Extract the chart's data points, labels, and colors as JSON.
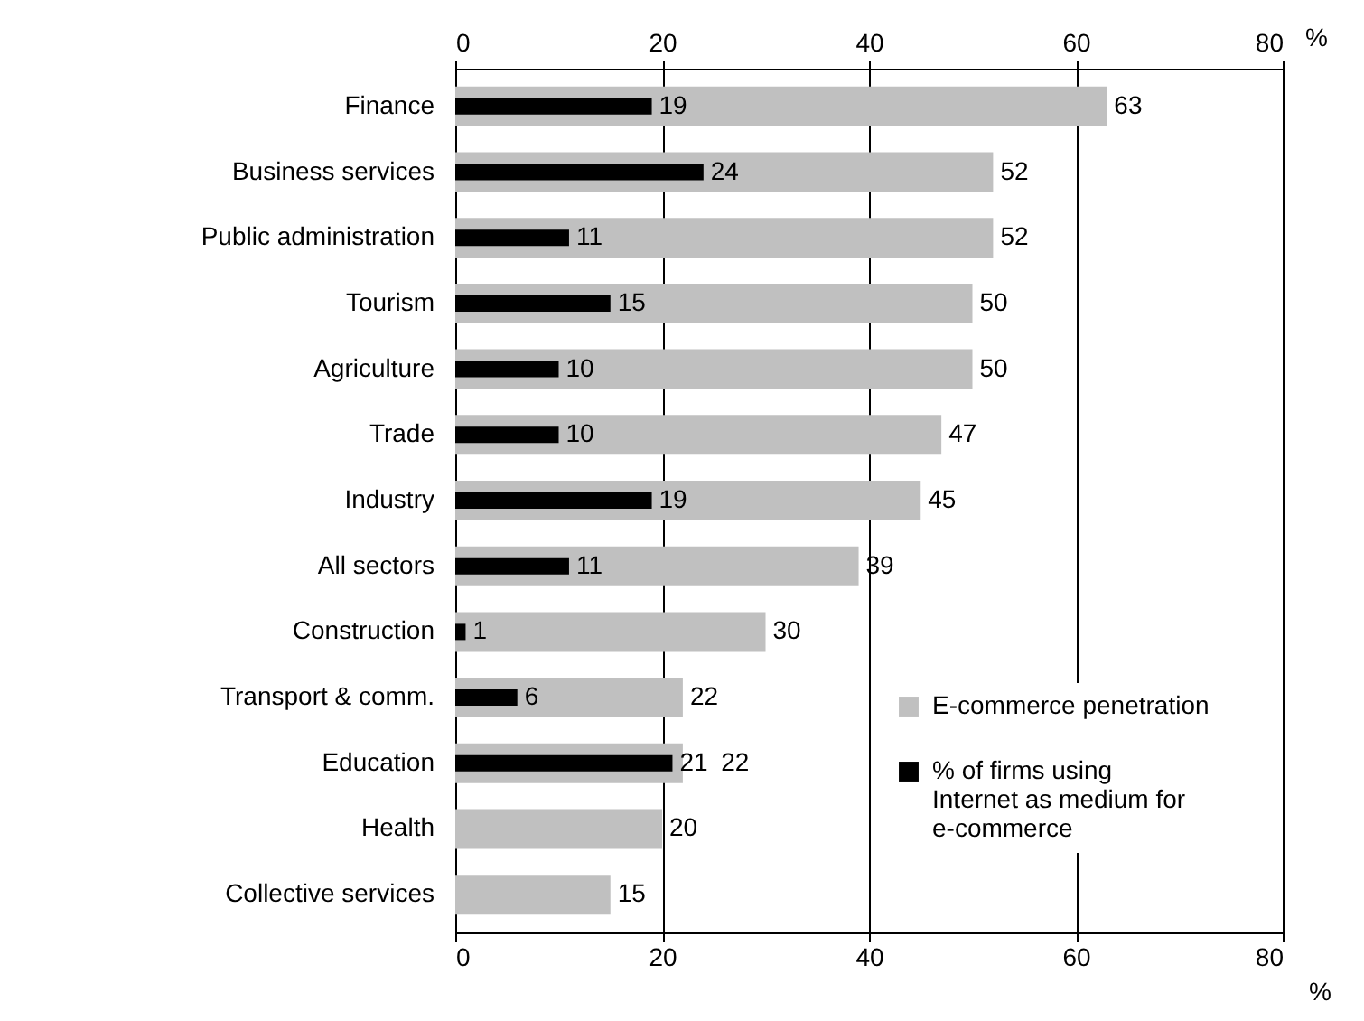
{
  "chart_data": {
    "type": "bar",
    "orientation": "horizontal",
    "categories": [
      "Finance",
      "Business services",
      "Public administration",
      "Tourism",
      "Agriculture",
      "Trade",
      "Industry",
      "All sectors",
      "Construction",
      "Transport & comm.",
      "Education",
      "Health",
      "Collective services"
    ],
    "series": [
      {
        "name": "E-commerce penetration",
        "color": "#c0c0c0",
        "values": [
          63,
          52,
          52,
          50,
          50,
          47,
          45,
          39,
          30,
          22,
          22,
          20,
          15
        ]
      },
      {
        "name": "% of firms using Internet as medium for e-commerce",
        "color": "#000000",
        "values": [
          19,
          24,
          11,
          15,
          10,
          10,
          19,
          11,
          1,
          6,
          21,
          null,
          null
        ]
      }
    ],
    "xlim": [
      0,
      80
    ],
    "xticks": [
      0,
      20,
      40,
      60,
      80
    ],
    "x2lim": [
      0,
      80
    ],
    "x2ticks": [
      0,
      20,
      40,
      60,
      80
    ],
    "xlabel": "%",
    "x2label": "%",
    "grid": "x",
    "legend": "bottom right",
    "data_labels": true
  }
}
